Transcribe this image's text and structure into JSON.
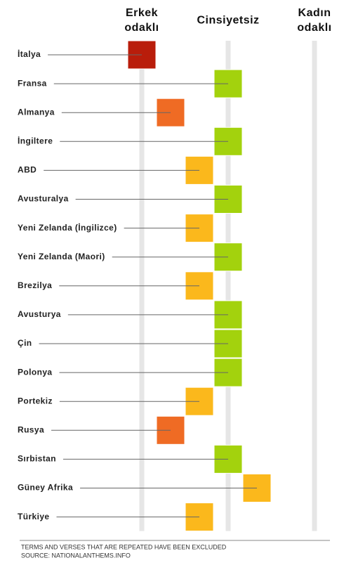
{
  "chart_data": {
    "type": "dot-strip",
    "categories": [
      "İtalya",
      "Fransa",
      "Almanya",
      "İngiltere",
      "ABD",
      "Avusturalya",
      "Yeni Zelanda (İngilizce)",
      "Yeni Zelanda (Maori)",
      "Brezilya",
      "Avusturya",
      "Çin",
      "Polonya",
      "Portekiz",
      "Rusya",
      "Sırbistan",
      "Güney Afrika",
      "Türkiye"
    ],
    "values": [
      -3,
      0,
      -2,
      0,
      -1,
      0,
      -1,
      0,
      -1,
      0,
      0,
      0,
      -1,
      -2,
      0,
      1,
      -1
    ],
    "colors": [
      "#b91d0b",
      "#a3d20d",
      "#ef6b24",
      "#a3d20d",
      "#fbb81c",
      "#a3d20d",
      "#fbb81c",
      "#a3d20d",
      "#fbb81c",
      "#a3d20d",
      "#a3d20d",
      "#a3d20d",
      "#fbb81c",
      "#ef6b24",
      "#a3d20d",
      "#fbb81c",
      "#fbb81c"
    ],
    "xlim": [
      -3,
      3
    ],
    "xticks": [
      {
        "value": -3,
        "label": "Erkek odaklı"
      },
      {
        "value": 0,
        "label": "Cinsiyetsiz"
      },
      {
        "value": 3,
        "label": "Kadın odaklı"
      }
    ],
    "grid": true,
    "notes": [
      "TERMS AND VERSES THAT ARE REPEATED HAVE BEEN EXCLUDED",
      "SOURCE: NATIONALANTHEMS.INFO"
    ]
  }
}
